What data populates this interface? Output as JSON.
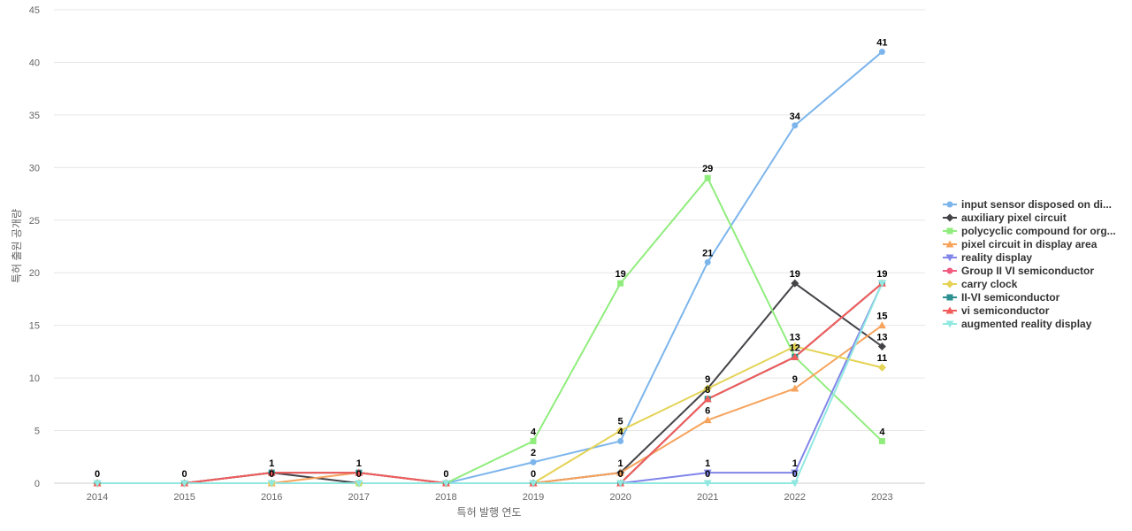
{
  "chart_data": {
    "type": "line",
    "title": "",
    "xlabel": "특허 발행 연도",
    "ylabel": "특허 출원 공개량",
    "x": [
      "2014",
      "2015",
      "2016",
      "2017",
      "2018",
      "2019",
      "2020",
      "2021",
      "2022",
      "2023"
    ],
    "ylim": [
      0,
      45
    ],
    "yticks": [
      0,
      5,
      10,
      15,
      20,
      25,
      30,
      35,
      40,
      45
    ],
    "grid": true,
    "legend_position": "right",
    "series": [
      {
        "name": "input sensor disposed on di...",
        "color": "#7cb5ec",
        "marker": "circle",
        "values": [
          0,
          0,
          0,
          0,
          0,
          2,
          4,
          21,
          34,
          41
        ]
      },
      {
        "name": "auxiliary pixel circuit",
        "color": "#434348",
        "marker": "diamond",
        "values": [
          0,
          0,
          1,
          0,
          0,
          0,
          1,
          9,
          19,
          13
        ]
      },
      {
        "name": "polycyclic compound for org...",
        "color": "#90ed7d",
        "marker": "square",
        "values": [
          0,
          0,
          0,
          0,
          0,
          4,
          19,
          29,
          12,
          4
        ]
      },
      {
        "name": "pixel circuit in display area",
        "color": "#f7a35c",
        "marker": "triangle",
        "values": [
          0,
          0,
          0,
          1,
          0,
          0,
          1,
          6,
          9,
          15
        ]
      },
      {
        "name": "reality display",
        "color": "#8085e9",
        "marker": "triangle-down",
        "values": [
          0,
          0,
          0,
          0,
          0,
          0,
          0,
          1,
          1,
          19
        ]
      },
      {
        "name": "Group II VI semiconductor",
        "color": "#f15c80",
        "marker": "circle",
        "values": [
          0,
          0,
          1,
          1,
          0,
          0,
          0,
          8,
          12,
          19
        ]
      },
      {
        "name": "carry clock",
        "color": "#e4d354",
        "marker": "diamond",
        "values": [
          0,
          0,
          0,
          0,
          0,
          0,
          5,
          9,
          13,
          11
        ]
      },
      {
        "name": "II-VI semiconductor",
        "color": "#2b908f",
        "marker": "square",
        "values": [
          0,
          0,
          1,
          1,
          0,
          0,
          0,
          8,
          12,
          19
        ]
      },
      {
        "name": "vi semiconductor",
        "color": "#f45b5b",
        "marker": "triangle",
        "values": [
          0,
          0,
          1,
          1,
          0,
          0,
          0,
          8,
          12,
          19
        ]
      },
      {
        "name": "augmented reality display",
        "color": "#91e8e1",
        "marker": "triangle-down",
        "values": [
          0,
          0,
          0,
          0,
          0,
          0,
          0,
          0,
          0,
          19
        ]
      }
    ],
    "data_labels": [
      {
        "x": "2014",
        "text": "0"
      },
      {
        "x": "2015",
        "text": "0"
      },
      {
        "x": "2016",
        "text": "1"
      },
      {
        "x": "2016",
        "text": "0"
      },
      {
        "x": "2017",
        "text": "1"
      },
      {
        "x": "2017",
        "text": "0"
      },
      {
        "x": "2018",
        "text": "0"
      },
      {
        "x": "2019",
        "text": "4"
      },
      {
        "x": "2019",
        "text": "2"
      },
      {
        "x": "2019",
        "text": "0"
      },
      {
        "x": "2020",
        "text": "19"
      },
      {
        "x": "2020",
        "text": "5"
      },
      {
        "x": "2020",
        "text": "4"
      },
      {
        "x": "2020",
        "text": "1"
      },
      {
        "x": "2020",
        "text": "0"
      },
      {
        "x": "2021",
        "text": "29"
      },
      {
        "x": "2021",
        "text": "21"
      },
      {
        "x": "2021",
        "text": "9"
      },
      {
        "x": "2021",
        "text": "8"
      },
      {
        "x": "2021",
        "text": "6"
      },
      {
        "x": "2021",
        "text": "1"
      },
      {
        "x": "2021",
        "text": "0"
      },
      {
        "x": "2022",
        "text": "34"
      },
      {
        "x": "2022",
        "text": "19"
      },
      {
        "x": "2022",
        "text": "13"
      },
      {
        "x": "2022",
        "text": "12"
      },
      {
        "x": "2022",
        "text": "9"
      },
      {
        "x": "2022",
        "text": "1"
      },
      {
        "x": "2022",
        "text": "0"
      },
      {
        "x": "2023",
        "text": "41"
      },
      {
        "x": "2023",
        "text": "19"
      },
      {
        "x": "2023",
        "text": "15"
      },
      {
        "x": "2023",
        "text": "13"
      },
      {
        "x": "2023",
        "text": "11"
      },
      {
        "x": "2023",
        "text": "4"
      }
    ]
  }
}
